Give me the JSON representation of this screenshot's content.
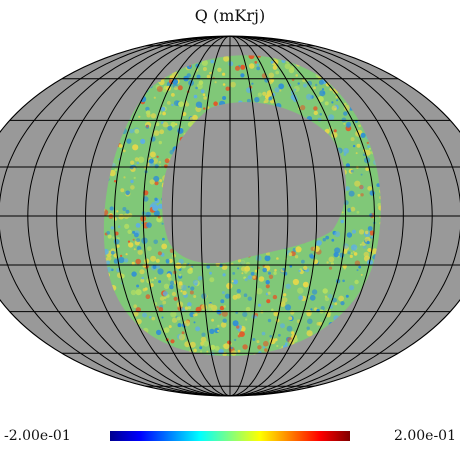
{
  "title": "Q (mKrj)",
  "colorbar": {
    "min_label": "-2.00e-01",
    "max_label": "2.00e-01",
    "min_value": -0.2,
    "max_value": 0.2,
    "colormap": [
      "#00008f",
      "#0000ff",
      "#0080ff",
      "#00ffff",
      "#80ff80",
      "#ffff00",
      "#ff8000",
      "#ff0000",
      "#800000"
    ]
  },
  "map": {
    "projection": "mollweide",
    "background_color": "#999999",
    "grid": true,
    "graticule_color": "#000000",
    "coverage": "ring-shaped observed patch",
    "data_field_colors": {
      "base": "#80c878",
      "cool": "#2f8fd6",
      "warm": "#e6d84a",
      "hot": "#e05a2a"
    }
  }
}
